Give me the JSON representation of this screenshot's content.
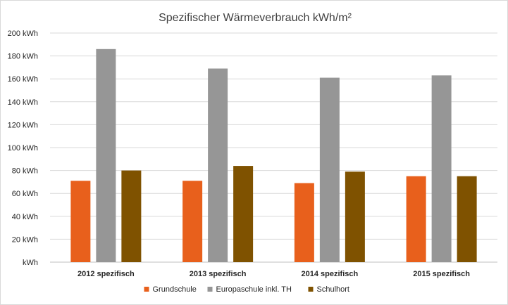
{
  "chart_data": {
    "type": "bar",
    "title": "Spezifischer Wärmeverbrauch kWh/m²",
    "categories": [
      "2012 spezifisch",
      "2013 spezifisch",
      "2014 spezifisch",
      "2015 spezifisch"
    ],
    "series": [
      {
        "name": "Grundschule",
        "values": [
          71,
          71,
          69,
          75
        ],
        "color": "#e8601c"
      },
      {
        "name": "Europaschule inkl. TH",
        "values": [
          186,
          169,
          161,
          163
        ],
        "color": "#969696"
      },
      {
        "name": "Schulhort",
        "values": [
          80,
          84,
          79,
          75
        ],
        "color": "#7f5200"
      }
    ],
    "ylim": [
      0,
      200
    ],
    "ytick_step": 20,
    "ytick_unit": "kWh",
    "ytick_labels": [
      "kWh",
      "20 kWh",
      "40 kWh",
      "60 kWh",
      "80 kWh",
      "100 kWh",
      "120 kWh",
      "140 kWh",
      "160 kWh",
      "180 kWh",
      "200 kWh"
    ],
    "grid": true,
    "legend_position": "bottom"
  }
}
